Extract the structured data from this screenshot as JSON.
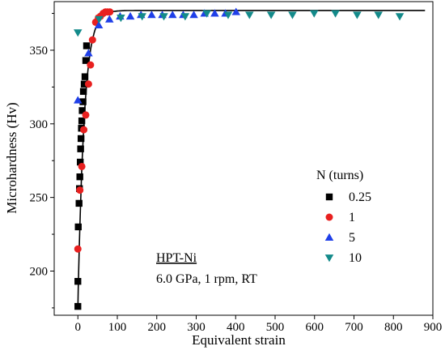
{
  "chart_data": {
    "type": "scatter",
    "xlabel": "Equivalent strain",
    "ylabel": "Microhardness (Hv)",
    "xlim": [
      -60,
      900
    ],
    "ylim": [
      170,
      383
    ],
    "xticks": [
      0,
      100,
      200,
      300,
      400,
      500,
      600,
      700,
      800,
      900
    ],
    "yticks": [
      200,
      250,
      300,
      350
    ],
    "grid": false,
    "legend_title": "N (turns)",
    "legend_position": "center-right",
    "annotation": {
      "line1": "HPT-Ni",
      "line2": "6.0 GPa, 1 rpm, RT"
    },
    "series": [
      {
        "name": "0.25",
        "marker": "square",
        "color": "#000000",
        "points": [
          [
            0,
            176
          ],
          [
            0,
            193
          ],
          [
            1,
            230
          ],
          [
            3,
            246
          ],
          [
            4,
            256
          ],
          [
            5,
            264
          ],
          [
            6,
            274
          ],
          [
            7,
            283
          ],
          [
            8,
            290
          ],
          [
            9,
            297
          ],
          [
            10,
            302
          ],
          [
            11,
            309
          ],
          [
            13,
            315
          ],
          [
            14,
            322
          ],
          [
            16,
            327
          ],
          [
            18,
            332
          ],
          [
            20,
            343
          ],
          [
            22,
            353
          ]
        ]
      },
      {
        "name": "1",
        "marker": "circle",
        "color": "#e8201f",
        "points": [
          [
            0,
            215
          ],
          [
            5,
            255
          ],
          [
            10,
            271
          ],
          [
            15,
            296
          ],
          [
            20,
            306
          ],
          [
            27,
            327
          ],
          [
            32,
            340
          ],
          [
            37,
            357
          ],
          [
            45,
            369
          ],
          [
            52,
            372
          ],
          [
            57,
            373
          ],
          [
            64,
            375
          ],
          [
            70,
            376
          ],
          [
            75,
            376
          ],
          [
            81,
            376
          ]
        ]
      },
      {
        "name": "5",
        "marker": "triangle-up",
        "color": "#1f3fe8",
        "points": [
          [
            0,
            316
          ],
          [
            27,
            348
          ],
          [
            53,
            367
          ],
          [
            80,
            371
          ],
          [
            107,
            373
          ],
          [
            133,
            373
          ],
          [
            160,
            374
          ],
          [
            187,
            374
          ],
          [
            214,
            374
          ],
          [
            240,
            374
          ],
          [
            267,
            374
          ],
          [
            294,
            374
          ],
          [
            321,
            375
          ],
          [
            347,
            375
          ],
          [
            374,
            375
          ],
          [
            401,
            376
          ]
        ]
      },
      {
        "name": "10",
        "marker": "triangle-down",
        "color": "#138a8a",
        "points": [
          [
            0,
            362
          ],
          [
            54,
            371
          ],
          [
            109,
            372
          ],
          [
            163,
            373
          ],
          [
            218,
            373
          ],
          [
            272,
            373
          ],
          [
            327,
            375
          ],
          [
            381,
            374
          ],
          [
            435,
            374
          ],
          [
            490,
            374
          ],
          [
            544,
            374
          ],
          [
            599,
            375
          ],
          [
            653,
            375
          ],
          [
            708,
            374
          ],
          [
            762,
            374
          ],
          [
            816,
            373
          ]
        ]
      }
    ]
  }
}
